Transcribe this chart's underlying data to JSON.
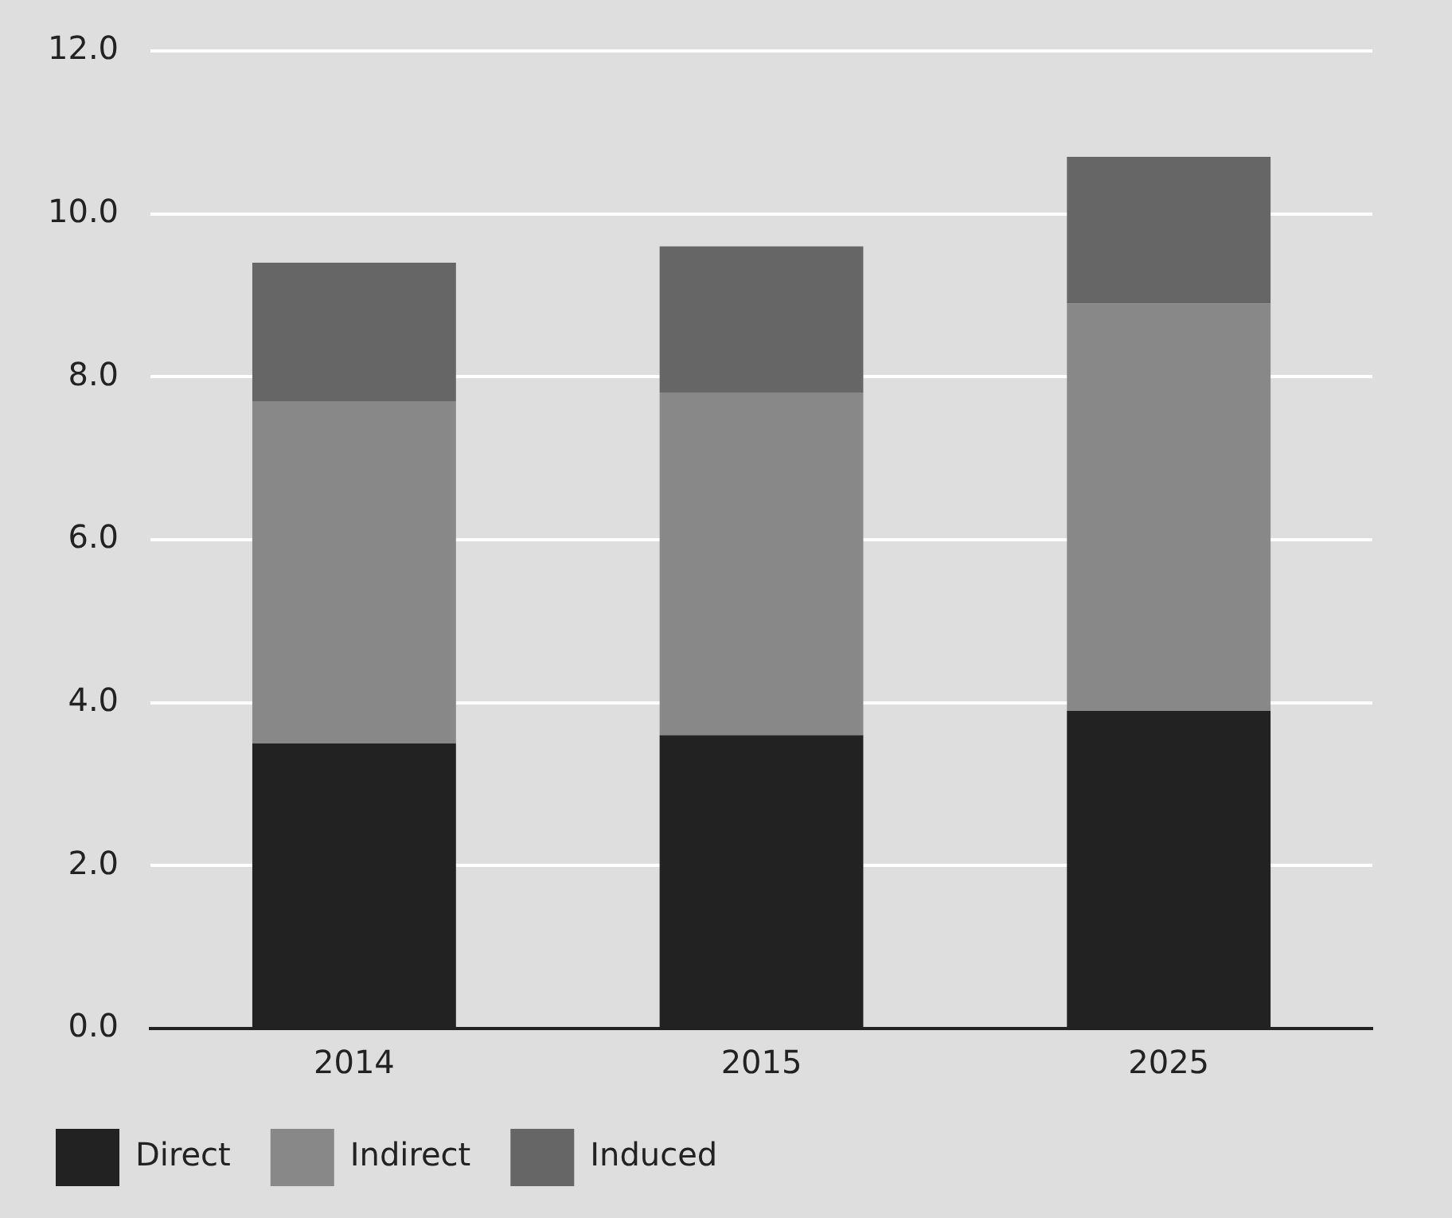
{
  "chart_data": {
    "type": "bar",
    "stacked": true,
    "categories": [
      "2014",
      "2015",
      "2025"
    ],
    "series": [
      {
        "name": "Direct",
        "color": "#222222",
        "values": [
          3.5,
          3.6,
          3.9
        ]
      },
      {
        "name": "Indirect",
        "color": "#888888",
        "values": [
          4.2,
          4.2,
          5.0
        ]
      },
      {
        "name": "Induced",
        "color": "#666666",
        "values": [
          1.7,
          1.8,
          1.8
        ]
      }
    ],
    "ylim": [
      0,
      12
    ],
    "yticks": [
      {
        "value": 0,
        "label": "0.0"
      },
      {
        "value": 2,
        "label": "2.0"
      },
      {
        "value": 4,
        "label": "4.0"
      },
      {
        "value": 6,
        "label": "6.0"
      },
      {
        "value": 8,
        "label": "8.0"
      },
      {
        "value": 10,
        "label": "10.0"
      },
      {
        "value": 12,
        "label": "12.0"
      }
    ],
    "grid": "y",
    "legend": "bottom left"
  }
}
